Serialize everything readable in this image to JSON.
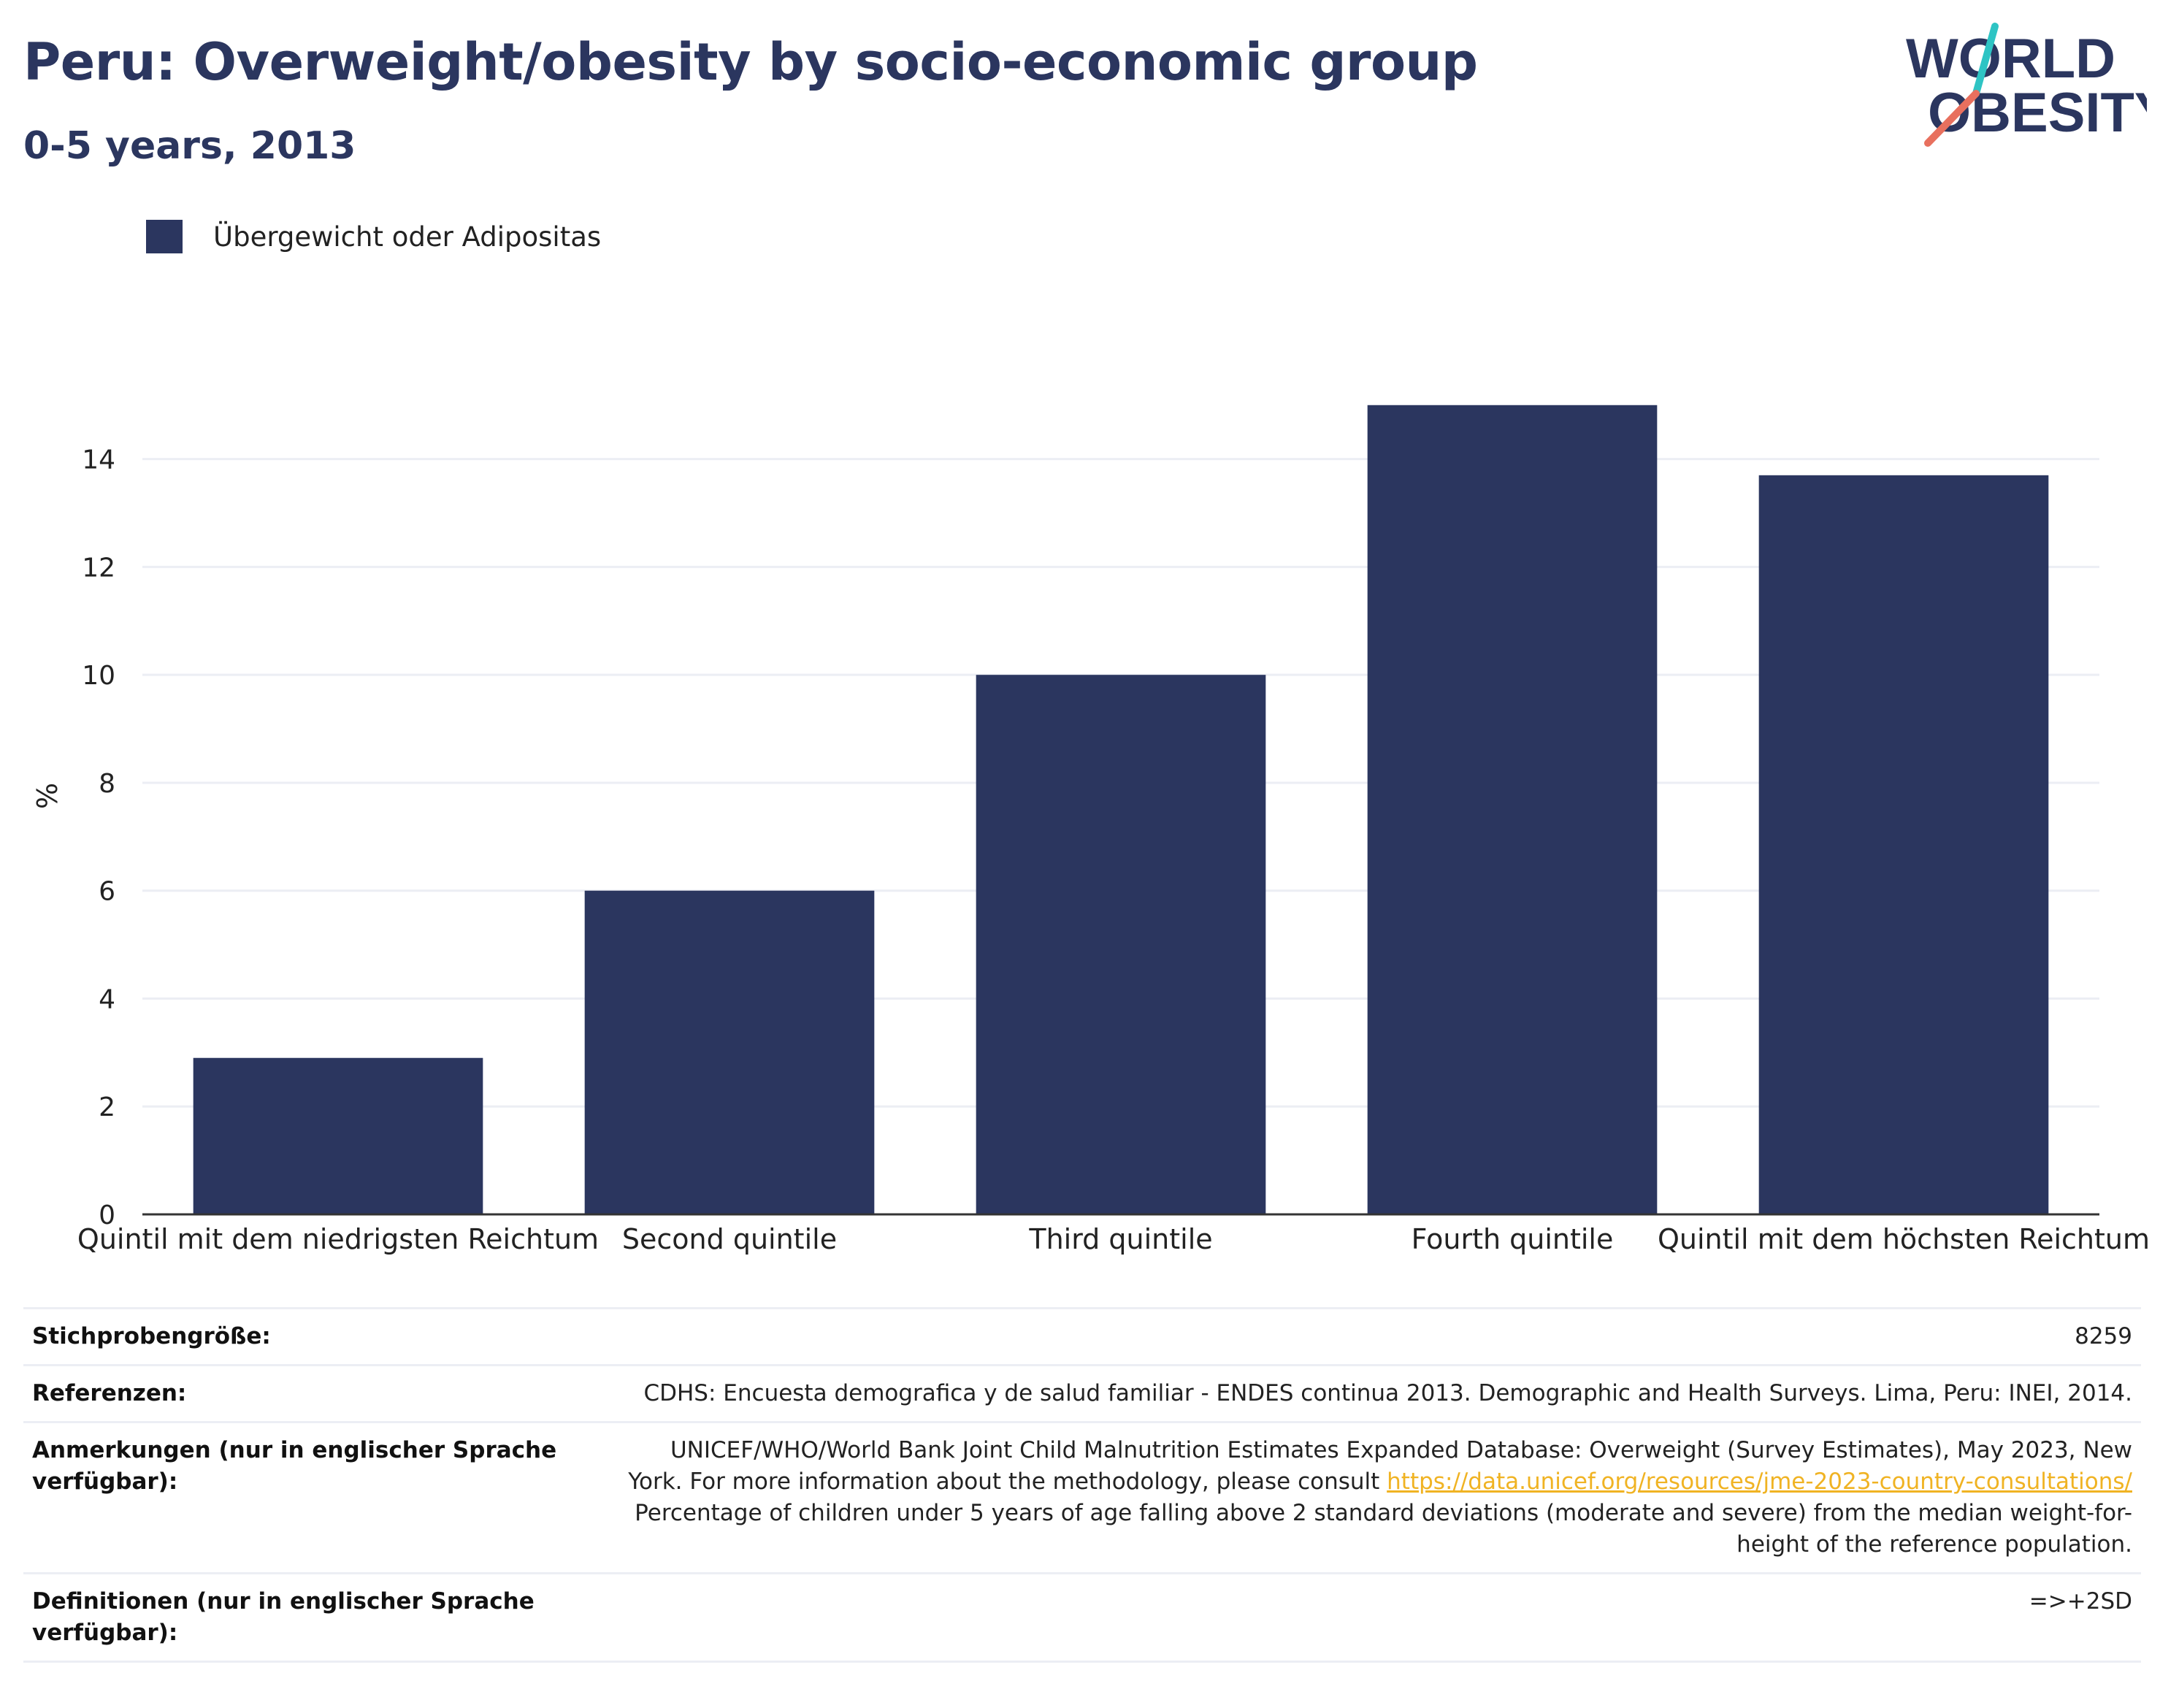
{
  "header": {
    "title": "Peru: Overweight/obesity by socio-economic group",
    "subtitle": "0-5 years, 2013"
  },
  "logo": {
    "line1": "WORLD",
    "line2": "OBESITY",
    "colors": {
      "text": "#2b365f",
      "accent_teal": "#2ec4c4",
      "accent_coral": "#e8705e"
    }
  },
  "colors": {
    "bar": "#2b365f",
    "grid": "#eceef4",
    "axis": "#333333",
    "text": "#222222",
    "link": "#f0b323"
  },
  "chart_data": {
    "type": "bar",
    "title": "Peru: Overweight/obesity by socio-economic group",
    "subtitle": "0-5 years, 2013",
    "categories": [
      "Quintil mit dem niedrigsten Reichtum",
      "Second quintile",
      "Third quintile",
      "Fourth quintile",
      "Quintil mit dem höchsten Reichtum"
    ],
    "series": [
      {
        "name": "Übergewicht oder Adipositas",
        "values": [
          2.9,
          6.0,
          10.0,
          15.0,
          13.7
        ],
        "color": "#2b365f"
      }
    ],
    "xlabel": "",
    "ylabel": "%",
    "ylim": [
      0,
      15.2
    ],
    "yticks": [
      0,
      2,
      4,
      6,
      8,
      10,
      12,
      14
    ],
    "grid": true,
    "legend": "top-left"
  },
  "info_table": {
    "rows": [
      {
        "key": "Stichprobengröße:",
        "value": "8259"
      },
      {
        "key": "Referenzen:",
        "value": "CDHS: Encuesta demografica y de salud familiar - ENDES continua 2013. Demographic and Health Surveys. Lima, Peru: INEI, 2014."
      },
      {
        "key": "Anmerkungen (nur in englischer Sprache verfügbar):",
        "value_before": "UNICEF/WHO/World Bank Joint Child Malnutrition Estimates Expanded Database: Overweight (Survey Estimates), May 2023, New York. For more information about the methodology, please consult ",
        "value_link": "https://data.unicef.org/resources/jme-2023-country-consultations/",
        "value_after": " Percentage of children under 5 years of age falling above 2 standard deviations (moderate and severe) from the median weight-for-height of the reference population."
      },
      {
        "key": "Definitionen (nur in englischer Sprache verfügbar):",
        "value": "=>+2SD"
      }
    ]
  }
}
